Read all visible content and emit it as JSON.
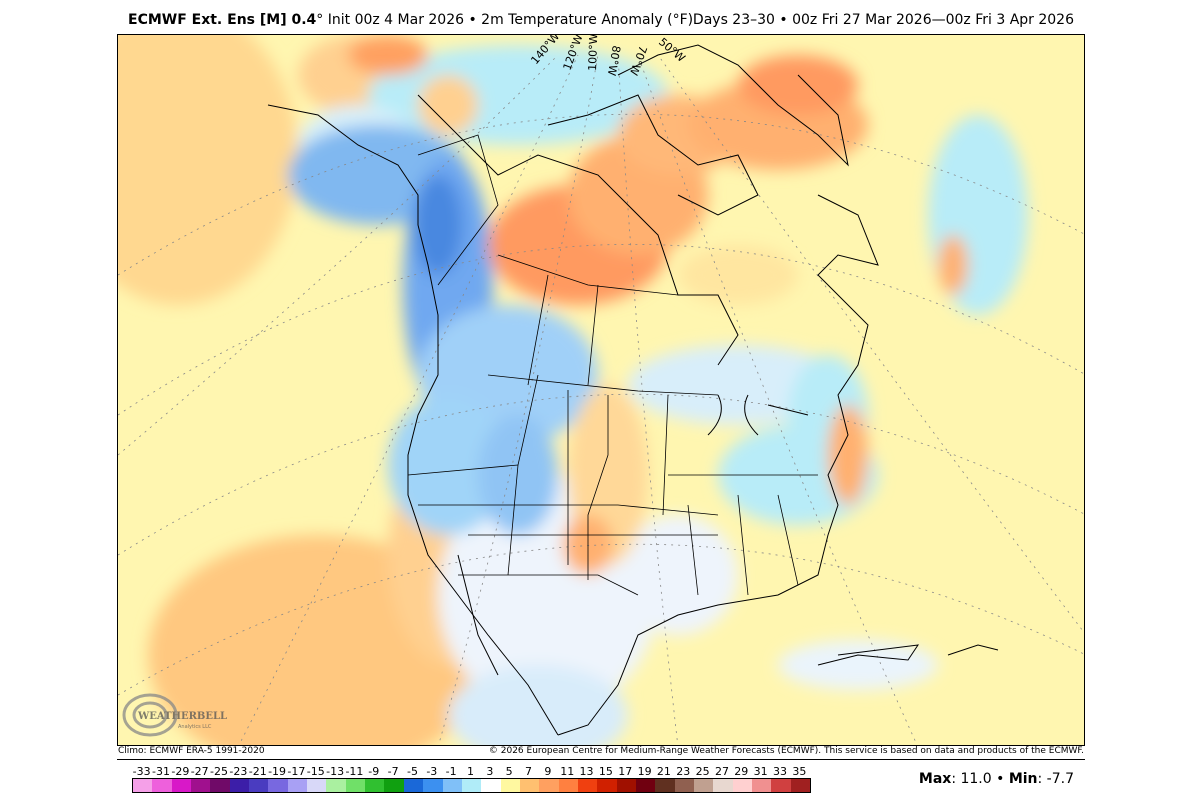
{
  "header": {
    "model_bold": "ECMWF Ext. Ens [M] 0.4",
    "degree": "°",
    "rest": " Init 00z 4 Mar 2026 • 2m Temperature Anomaly (°F)",
    "valid": "Days 23–30 • 00z Fri 27 Mar 2026—00z Fri 3 Apr 2026"
  },
  "map": {
    "longitude_labels": [
      "140°W",
      "120°W",
      "100°W",
      "80°W",
      "70°W",
      "50°W"
    ],
    "logo_text": "WEATHERBELL",
    "logo_sub": "Analytics LLC"
  },
  "footer": {
    "climo": "Climo: ECMWF ERA-5 1991-2020",
    "copyright": "© 2026 European Centre for Medium-Range Weather Forecasts (ECMWF). This service is based on data and products of the ECMWF."
  },
  "colorbar": {
    "labels": [
      "-33",
      "-31",
      "-29",
      "-27",
      "-25",
      "-23",
      "-21",
      "-19",
      "-17",
      "-15",
      "-13",
      "-11",
      "-9",
      "-7",
      "-5",
      "-3",
      "-1",
      "1",
      "3",
      "5",
      "7",
      "9",
      "11",
      "13",
      "15",
      "17",
      "19",
      "21",
      "23",
      "25",
      "27",
      "29",
      "31",
      "33",
      "35"
    ],
    "colors": [
      "#f5a0e8",
      "#ee60dc",
      "#d818c8",
      "#a0108e",
      "#700a68",
      "#3c1ea8",
      "#4a3cc0",
      "#7868e0",
      "#a8a0f4",
      "#d8d8f8",
      "#aaf0a0",
      "#70e068",
      "#30c030",
      "#10a010",
      "#1a68d8",
      "#3c90f0",
      "#80c0f8",
      "#b0ecf8",
      "#ffffff",
      "#fff8a0",
      "#ffc070",
      "#ffa060",
      "#ff8040",
      "#f04010",
      "#d02000",
      "#a01000",
      "#700010",
      "#603020",
      "#906050",
      "#c0a090",
      "#e8d8d0",
      "#ffd0d0",
      "#f09090",
      "#d04040",
      "#a02020"
    ]
  },
  "stats": {
    "max_label": "Max",
    "max_value": ": 11.0 • ",
    "min_label": "Min",
    "min_value": ": -7.7"
  }
}
